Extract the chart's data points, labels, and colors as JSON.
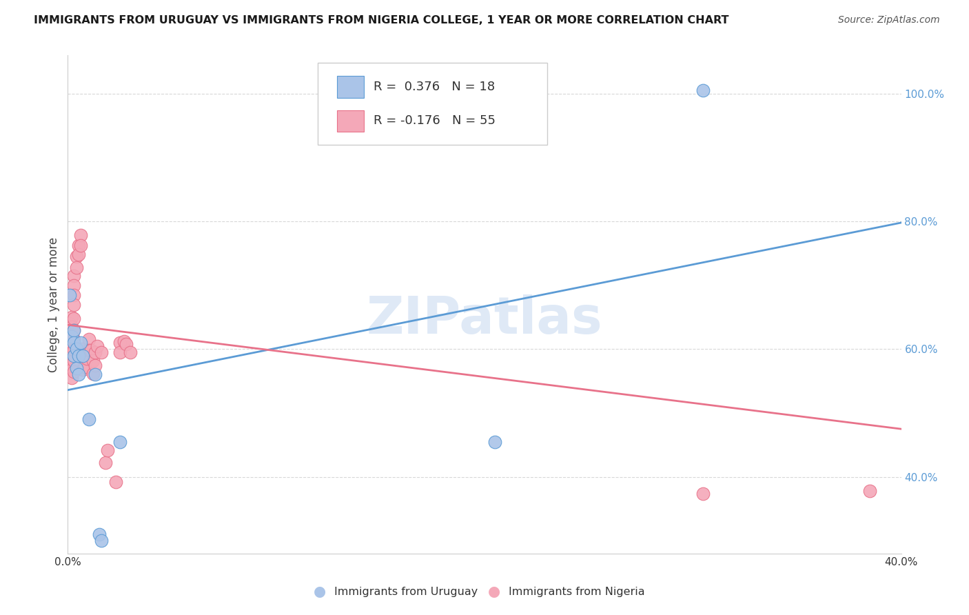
{
  "title": "IMMIGRANTS FROM URUGUAY VS IMMIGRANTS FROM NIGERIA COLLEGE, 1 YEAR OR MORE CORRELATION CHART",
  "source": "Source: ZipAtlas.com",
  "ylabel": "College, 1 year or more",
  "x_min": 0.0,
  "x_max": 0.4,
  "y_min": 0.28,
  "y_max": 1.06,
  "x_ticks": [
    0.0,
    0.05,
    0.1,
    0.15,
    0.2,
    0.25,
    0.3,
    0.35,
    0.4
  ],
  "x_tick_labels": [
    "0.0%",
    "",
    "",
    "",
    "",
    "",
    "",
    "",
    "40.0%"
  ],
  "y_ticks": [
    0.4,
    0.6,
    0.8,
    1.0
  ],
  "watermark": "ZIPatlas",
  "blue_color": "#5b9bd5",
  "pink_color": "#e8728a",
  "blue_fill": "#aac4e8",
  "pink_fill": "#f4a8b8",
  "legend_blue_label": "R =  0.376   N = 18",
  "legend_pink_label": "R = -0.176   N = 55",
  "uruguay_scatter": [
    [
      0.001,
      0.685
    ],
    [
      0.002,
      0.62
    ],
    [
      0.003,
      0.63
    ],
    [
      0.003,
      0.61
    ],
    [
      0.003,
      0.59
    ],
    [
      0.004,
      0.6
    ],
    [
      0.004,
      0.57
    ],
    [
      0.005,
      0.59
    ],
    [
      0.005,
      0.56
    ],
    [
      0.006,
      0.61
    ],
    [
      0.007,
      0.59
    ],
    [
      0.01,
      0.49
    ],
    [
      0.013,
      0.56
    ],
    [
      0.015,
      0.31
    ],
    [
      0.016,
      0.3
    ],
    [
      0.025,
      0.455
    ],
    [
      0.205,
      0.455
    ],
    [
      0.305,
      1.005
    ]
  ],
  "nigeria_scatter": [
    [
      0.001,
      0.64
    ],
    [
      0.001,
      0.63
    ],
    [
      0.001,
      0.618
    ],
    [
      0.001,
      0.605
    ],
    [
      0.001,
      0.595
    ],
    [
      0.001,
      0.582
    ],
    [
      0.002,
      0.65
    ],
    [
      0.002,
      0.635
    ],
    [
      0.002,
      0.622
    ],
    [
      0.002,
      0.61
    ],
    [
      0.002,
      0.595
    ],
    [
      0.002,
      0.582
    ],
    [
      0.002,
      0.568
    ],
    [
      0.002,
      0.555
    ],
    [
      0.003,
      0.715
    ],
    [
      0.003,
      0.7
    ],
    [
      0.003,
      0.685
    ],
    [
      0.003,
      0.67
    ],
    [
      0.003,
      0.648
    ],
    [
      0.003,
      0.63
    ],
    [
      0.003,
      0.615
    ],
    [
      0.003,
      0.598
    ],
    [
      0.003,
      0.582
    ],
    [
      0.003,
      0.565
    ],
    [
      0.004,
      0.745
    ],
    [
      0.004,
      0.728
    ],
    [
      0.005,
      0.762
    ],
    [
      0.005,
      0.748
    ],
    [
      0.006,
      0.778
    ],
    [
      0.006,
      0.762
    ],
    [
      0.007,
      0.6
    ],
    [
      0.007,
      0.585
    ],
    [
      0.007,
      0.568
    ],
    [
      0.008,
      0.592
    ],
    [
      0.008,
      0.572
    ],
    [
      0.009,
      0.585
    ],
    [
      0.01,
      0.615
    ],
    [
      0.01,
      0.598
    ],
    [
      0.011,
      0.598
    ],
    [
      0.012,
      0.582
    ],
    [
      0.012,
      0.562
    ],
    [
      0.013,
      0.595
    ],
    [
      0.013,
      0.575
    ],
    [
      0.014,
      0.605
    ],
    [
      0.016,
      0.595
    ],
    [
      0.018,
      0.422
    ],
    [
      0.019,
      0.442
    ],
    [
      0.023,
      0.392
    ],
    [
      0.025,
      0.61
    ],
    [
      0.025,
      0.595
    ],
    [
      0.027,
      0.612
    ],
    [
      0.028,
      0.608
    ],
    [
      0.03,
      0.595
    ],
    [
      0.305,
      0.374
    ],
    [
      0.385,
      0.378
    ]
  ],
  "uruguay_line_x": [
    0.0,
    0.4
  ],
  "uruguay_line_y": [
    0.536,
    0.798
  ],
  "nigeria_line_x": [
    0.0,
    0.4
  ],
  "nigeria_line_y": [
    0.638,
    0.475
  ],
  "background_color": "#ffffff",
  "grid_color": "#d8d8d8"
}
